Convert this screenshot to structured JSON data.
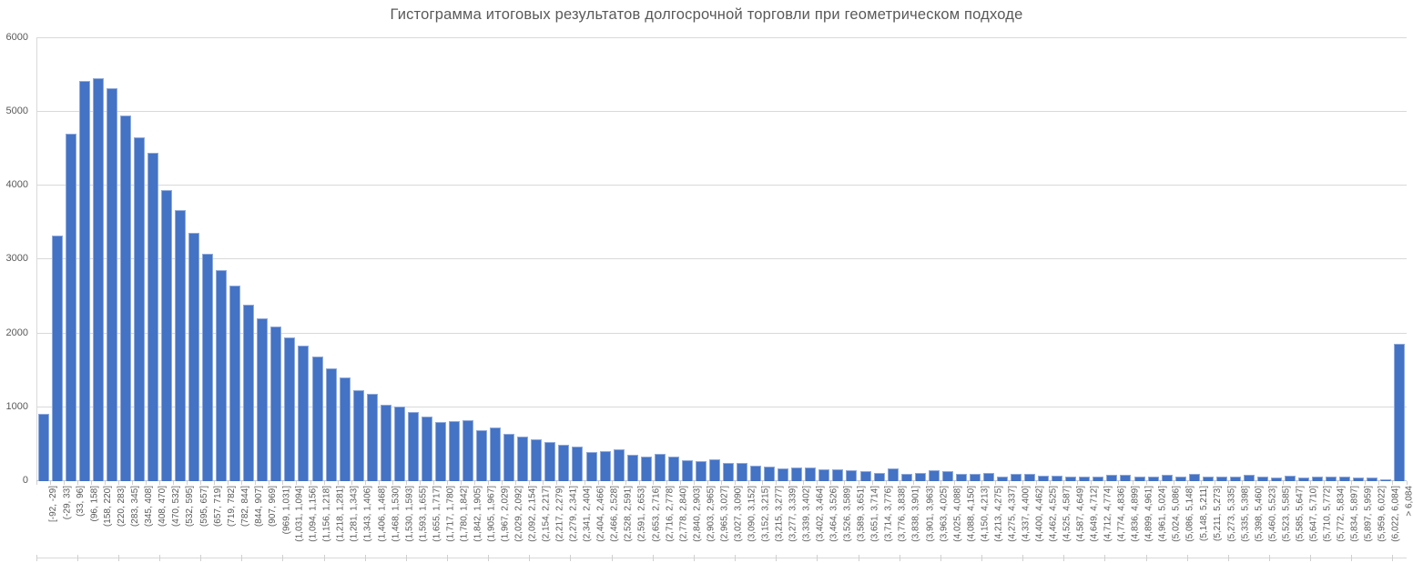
{
  "chart_data": {
    "type": "bar",
    "title": "Гистограмма итоговых результатов долгосрочной торговли при геометрическом подходе",
    "xlabel": "",
    "ylabel": "",
    "ylim": [
      0,
      6000
    ],
    "y_ticks": [
      0,
      1000,
      2000,
      3000,
      4000,
      5000,
      6000
    ],
    "y_tick_labels": [
      "0",
      "1000",
      "2000",
      "3000",
      "4000",
      "5000",
      "6000"
    ],
    "grid": true,
    "legend": "none",
    "bar_color": "#4472C4",
    "bar_border_color": "#8FAADC",
    "gridline_color": "#D9D9D9",
    "axis_color": "#C6C6C6",
    "text_color": "#595959",
    "categories": [
      "[-92, -29]",
      "(-29, 33]",
      "(33, 96]",
      "(96, 158]",
      "(158, 220]",
      "(220, 283]",
      "(283, 345]",
      "(345, 408]",
      "(408, 470]",
      "(470, 532]",
      "(532, 595]",
      "(595, 657]",
      "(657, 719]",
      "(719, 782]",
      "(782, 844]",
      "(844, 907]",
      "(907, 969]",
      "(969, 1,031]",
      "(1,031, 1,094]",
      "(1,094, 1,156]",
      "(1,156, 1,218]",
      "(1,218, 1,281]",
      "(1,281, 1,343]",
      "(1,343, 1,406]",
      "(1,406, 1,468]",
      "(1,468, 1,530]",
      "(1,530, 1,593]",
      "(1,593, 1,655]",
      "(1,655, 1,717]",
      "(1,717, 1,780]",
      "(1,780, 1,842]",
      "(1,842, 1,905]",
      "(1,905, 1,967]",
      "(1,967, 2,029]",
      "(2,029, 2,092]",
      "(2,092, 2,154]",
      "(2,154, 2,217]",
      "(2,217, 2,279]",
      "(2,279, 2,341]",
      "(2,341, 2,404]",
      "(2,404, 2,466]",
      "(2,466, 2,528]",
      "(2,528, 2,591]",
      "(2,591, 2,653]",
      "(2,653, 2,716]",
      "(2,716, 2,778]",
      "(2,778, 2,840]",
      "(2,840, 2,903]",
      "(2,903, 2,965]",
      "(2,965, 3,027]",
      "(3,027, 3,090]",
      "(3,090, 3,152]",
      "(3,152, 3,215]",
      "(3,215, 3,277]",
      "(3,277, 3,339]",
      "(3,339, 3,402]",
      "(3,402, 3,464]",
      "(3,464, 3,526]",
      "(3,526, 3,589]",
      "(3,589, 3,651]",
      "(3,651, 3,714]",
      "(3,714, 3,776]",
      "(3,776, 3,838]",
      "(3,838, 3,901]",
      "(3,901, 3,963]",
      "(3,963, 4,025]",
      "(4,025, 4,088]",
      "(4,088, 4,150]",
      "(4,150, 4,213]",
      "(4,213, 4,275]",
      "(4,275, 4,337]",
      "(4,337, 4,400]",
      "(4,400, 4,462]",
      "(4,462, 4,525]",
      "(4,525, 4,587]",
      "(4,587, 4,649]",
      "(4,649, 4,712]",
      "(4,712, 4,774]",
      "(4,774, 4,836]",
      "(4,836, 4,899]",
      "(4,899, 4,961]",
      "(4,961, 5,024]",
      "(5,024, 5,086]",
      "(5,086, 5,148]",
      "(5,148, 5,211]",
      "(5,211, 5,273]",
      "(5,273, 5,335]",
      "(5,335, 5,398]",
      "(5,398, 5,460]",
      "(5,460, 5,523]",
      "(5,523, 5,585]",
      "(5,585, 5,647]",
      "(5,647, 5,710]",
      "(5,710, 5,772]",
      "(5,772, 5,834]",
      "(5,834, 5,897]",
      "(5,897, 5,959]",
      "(5,959, 6,022]",
      "(6,022, 6,084]",
      "> 6,084"
    ],
    "values": [
      900,
      3320,
      4690,
      5410,
      5450,
      5310,
      4940,
      4650,
      4440,
      3930,
      3660,
      3350,
      3065,
      2845,
      2645,
      2380,
      2195,
      2090,
      1940,
      1825,
      1680,
      1520,
      1395,
      1230,
      1175,
      1025,
      1005,
      930,
      870,
      790,
      805,
      815,
      685,
      725,
      630,
      595,
      555,
      520,
      490,
      460,
      390,
      405,
      425,
      355,
      325,
      360,
      330,
      275,
      265,
      285,
      245,
      235,
      205,
      190,
      170,
      180,
      175,
      150,
      150,
      145,
      125,
      100,
      165,
      95,
      110,
      145,
      125,
      95,
      95,
      100,
      60,
      90,
      95,
      70,
      70,
      50,
      60,
      60,
      80,
      80,
      55,
      60,
      75,
      60,
      90,
      60,
      55,
      60,
      80,
      55,
      40,
      70,
      40,
      55,
      55,
      55,
      40,
      40,
      20,
      1850
    ]
  }
}
